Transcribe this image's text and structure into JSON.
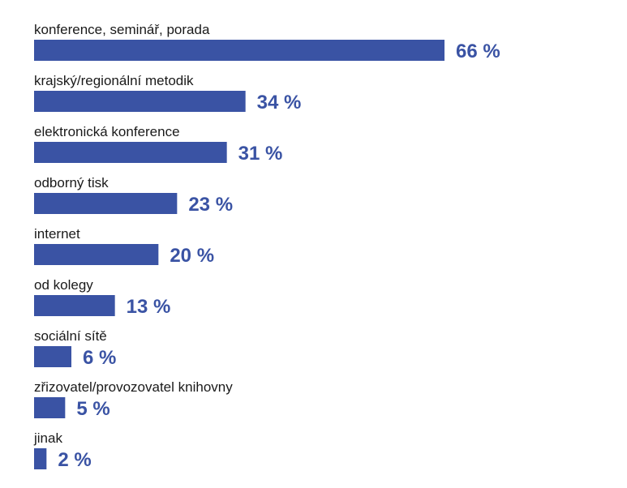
{
  "chart_data": {
    "type": "bar",
    "orientation": "horizontal",
    "categories": [
      "konference, seminář, porada",
      "krajský/regionální metodik",
      "elektronická konference",
      "odborný tisk",
      "internet",
      "od kolegy",
      "sociální sítě",
      "zřizovatel/provozovatel knihovny",
      "jinak"
    ],
    "values": [
      66,
      34,
      31,
      23,
      20,
      13,
      6,
      5,
      2
    ],
    "value_labels": [
      "66 %",
      "34 %",
      "31 %",
      "23 %",
      "20 %",
      "13 %",
      "6 %",
      "5 %",
      "2 %"
    ],
    "unit": "%",
    "xlim": [
      0,
      66
    ],
    "grid": false,
    "legend": "none",
    "title": "",
    "xlabel": "",
    "ylabel": ""
  },
  "colors": {
    "bar": "#3a53a4",
    "value_text": "#3a53a4",
    "category_text": "#1a1a1a"
  }
}
